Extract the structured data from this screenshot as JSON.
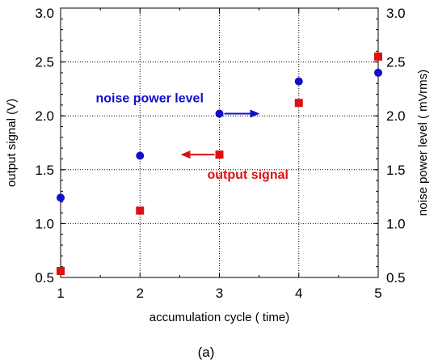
{
  "chart_data": {
    "type": "scatter",
    "xlabel": "accumulation cycle ( time)",
    "ylabel_left": "output signal (V)",
    "ylabel_right": "noise power level ( mVrms)",
    "caption": "(a)",
    "x_ticks": [
      "1",
      "2",
      "3",
      "4",
      "5"
    ],
    "y_ticks": [
      "0.5",
      "1.0",
      "1.5",
      "2.0",
      "2.5",
      "3.0"
    ],
    "xlim": [
      1,
      5
    ],
    "ylim_left": [
      0.5,
      3.0
    ],
    "ylim_right": [
      0.5,
      3.0
    ],
    "grid": true,
    "series": [
      {
        "name": "noise power level",
        "axis": "right",
        "marker": "circle",
        "color": "#1010cc",
        "x": [
          1,
          2,
          3,
          4,
          5
        ],
        "y": [
          1.24,
          1.63,
          2.02,
          2.32,
          2.4
        ]
      },
      {
        "name": "output signal",
        "axis": "left",
        "marker": "square",
        "color": "#dd1111",
        "x": [
          1,
          2,
          3,
          4,
          5
        ],
        "y": [
          0.56,
          1.12,
          1.64,
          2.12,
          2.55
        ]
      }
    ],
    "annotations": [
      {
        "text": "noise power level",
        "color": "#1010cc",
        "arrow": "right",
        "at_x": 3,
        "at_y": 2.02
      },
      {
        "text": "output signal",
        "color": "#dd1111",
        "arrow": "left",
        "at_x": 3,
        "at_y": 1.64
      }
    ]
  }
}
